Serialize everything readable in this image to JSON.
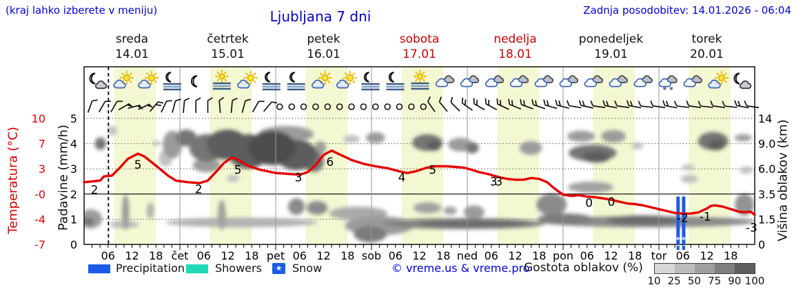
{
  "header": {
    "hint": "(kraj lahko izberete v meniju)",
    "title": "Ljubljana 7 dni",
    "updated": "Zadnja posodobitev: 14.01.2026 - 06:04"
  },
  "legend": {
    "precipitation": "Precipitation",
    "showers": "Showers",
    "snow": "Snow",
    "snow_star": "★",
    "credit": "© vreme.us & vreme.pro",
    "cloud_density": "Gostota oblakov (%)",
    "density_ticks": [
      "10",
      "25",
      "50",
      "75",
      "90",
      "100"
    ],
    "density_colors": [
      "#d6d6d6",
      "#bcbcbc",
      "#9e9e9e",
      "#7f7f7f",
      "#5e5e5e"
    ]
  },
  "colors": {
    "link_blue": "#0000dd",
    "day_red": "#cc0000",
    "day_black": "#111111",
    "curve_red": "#e60000",
    "precip_blue": "#1a5ce6",
    "showers_teal": "#1fd9b5",
    "day_band": "#f4f8d2",
    "grid_gray": "#999999",
    "frame": "#000000"
  },
  "chart_data": {
    "type": "meteogram",
    "title": "Ljubljana 7 dni",
    "days": [
      {
        "name": "sreda",
        "date": "14.01",
        "highlight": false
      },
      {
        "name": "četrtek",
        "date": "15.01",
        "highlight": false
      },
      {
        "name": "petek",
        "date": "16.01",
        "highlight": false
      },
      {
        "name": "sobota",
        "date": "17.01",
        "highlight": true
      },
      {
        "name": "nedelja",
        "date": "18.01",
        "highlight": true
      },
      {
        "name": "ponedeljek",
        "date": "19.01",
        "highlight": false
      },
      {
        "name": "torek",
        "date": "20.01",
        "highlight": false
      }
    ],
    "day_abbrevs": [
      "čet",
      "pet",
      "sob",
      "ned",
      "pon",
      "tor"
    ],
    "hour_ticks": [
      "06",
      "12",
      "18"
    ],
    "axes": {
      "temperature": {
        "label": "Temperatura (°C)",
        "ticks": [
          "10",
          "7",
          "3",
          "-0",
          "-4",
          "-7"
        ],
        "values": [
          10,
          7,
          3,
          0,
          -4,
          -7
        ]
      },
      "precip": {
        "label": "Padavine (mm/h)",
        "ticks": [
          "5",
          "4",
          "3",
          "2",
          "1",
          "0"
        ],
        "values": [
          5,
          4,
          3,
          2,
          1,
          0
        ]
      },
      "cloud": {
        "label": "Višina oblakov (km)",
        "ticks": [
          "14",
          "9.0",
          "6.0",
          "3.5",
          "1.5",
          "0"
        ],
        "values": [
          14,
          9,
          6,
          3.5,
          1.5,
          0
        ]
      }
    },
    "day_band_hours": [
      7.5,
      18
    ],
    "now_hour": 6.1,
    "temperature_curve": [
      [
        0,
        1.4
      ],
      [
        2,
        1.5
      ],
      [
        4,
        1.6
      ],
      [
        5,
        2.1
      ],
      [
        7,
        2.2
      ],
      [
        9,
        3.2
      ],
      [
        11,
        4.6
      ],
      [
        13.5,
        5.4
      ],
      [
        15,
        5.0
      ],
      [
        17,
        4.0
      ],
      [
        19.5,
        2.8
      ],
      [
        21,
        2.2
      ],
      [
        23,
        1.6
      ],
      [
        26,
        1.4
      ],
      [
        29,
        1.3
      ],
      [
        31,
        1.6
      ],
      [
        33,
        2.6
      ],
      [
        35,
        3.9
      ],
      [
        37,
        4.8
      ],
      [
        39,
        4.3
      ],
      [
        41,
        3.5
      ],
      [
        44,
        2.9
      ],
      [
        48,
        2.5
      ],
      [
        51,
        2.4
      ],
      [
        54,
        2.3
      ],
      [
        56,
        2.6
      ],
      [
        58,
        3.6
      ],
      [
        60,
        5.2
      ],
      [
        62,
        5.9
      ],
      [
        64,
        5.3
      ],
      [
        67,
        4.4
      ],
      [
        70,
        3.8
      ],
      [
        73,
        3.4
      ],
      [
        76,
        3.1
      ],
      [
        79,
        2.7
      ],
      [
        81,
        2.5
      ],
      [
        83,
        2.7
      ],
      [
        86,
        3.2
      ],
      [
        88,
        3.4
      ],
      [
        91,
        3.4
      ],
      [
        93,
        3.3
      ],
      [
        95,
        3.2
      ],
      [
        97,
        2.9
      ],
      [
        99,
        2.6
      ],
      [
        101,
        2.4
      ],
      [
        104,
        2.0
      ],
      [
        106,
        1.8
      ],
      [
        108,
        1.7
      ],
      [
        110,
        1.7
      ],
      [
        112,
        1.9
      ],
      [
        114,
        1.8
      ],
      [
        116,
        1.4
      ],
      [
        118,
        0.6
      ],
      [
        120,
        -0.1
      ],
      [
        122,
        -0.3
      ],
      [
        124,
        -0.2
      ],
      [
        126,
        -0.4
      ],
      [
        128,
        -0.5
      ],
      [
        130,
        -0.7
      ],
      [
        132,
        -0.9
      ],
      [
        134,
        -1.2
      ],
      [
        136,
        -1.5
      ],
      [
        138,
        -1.6
      ],
      [
        140,
        -1.8
      ],
      [
        142,
        -2.1
      ],
      [
        144,
        -2.4
      ],
      [
        146,
        -2.7
      ],
      [
        148,
        -3.0
      ],
      [
        150,
        -3.1
      ],
      [
        152,
        -3.1
      ],
      [
        154,
        -2.9
      ],
      [
        156,
        -2.3
      ],
      [
        157,
        -1.9
      ],
      [
        158,
        -1.8
      ],
      [
        160,
        -2.0
      ],
      [
        162,
        -2.4
      ],
      [
        164,
        -2.8
      ],
      [
        165.5,
        -2.9
      ],
      [
        167,
        -2.8
      ],
      [
        168,
        -3.3
      ]
    ],
    "temp_labels": [
      {
        "text": "2",
        "hour": 2.6,
        "anchor": 0.5
      },
      {
        "text": "5",
        "hour": 13.5,
        "anchor": 3.7
      },
      {
        "text": "2",
        "hour": 28.7,
        "anchor": 0.6
      },
      {
        "text": "5",
        "hour": 38.5,
        "anchor": 2.9
      },
      {
        "text": "3",
        "hour": 53.7,
        "anchor": 2.0
      },
      {
        "text": "6",
        "hour": 61.6,
        "anchor": 4.1
      },
      {
        "text": "4",
        "hour": 79.6,
        "anchor": 2.0
      },
      {
        "text": "5",
        "hour": 87.3,
        "anchor": 2.9
      },
      {
        "text": "3",
        "hour": 102.6,
        "anchor": 1.5
      },
      {
        "text": "3",
        "hour": 103.9,
        "anchor": 1.5
      },
      {
        "text": "0",
        "hour": 126.5,
        "anchor": -1.4
      },
      {
        "text": "0",
        "hour": 132.1,
        "anchor": -1.2
      },
      {
        "text": "-2",
        "hour": 149.9,
        "anchor": -3.8
      },
      {
        "text": "-1",
        "hour": 155.6,
        "anchor": -3.6
      },
      {
        "text": "-3",
        "hour": 167.2,
        "anchor": -5.0
      }
    ],
    "precip_bars": [
      {
        "hour": 148.8,
        "mmh": 1.9,
        "snow": true
      },
      {
        "hour": 150.2,
        "mmh": 1.9,
        "snow": true
      }
    ],
    "weather_icons": [
      "moon-cloud",
      "sun-cloud",
      "sun-cloud",
      "moon-fog",
      "moon",
      "sun-fog",
      "sun-cloud",
      "moon-fog",
      "moon-fog",
      "sun-cloud",
      "sun-cloud",
      "moon-fog",
      "moon-fog",
      "sun-fog",
      "cloud",
      "cloud",
      "cloud",
      "cloud",
      "cloud",
      "cloud",
      "cloud",
      "cloud",
      "cloud",
      "cloud-snow",
      "cloud",
      "sun-cloud",
      "moon-cloud"
    ],
    "wind_barbs": [
      [
        1.5,
        "b1",
        20
      ],
      [
        4.5,
        "b1",
        30
      ],
      [
        7.5,
        "b1",
        30
      ],
      [
        10,
        "f",
        60
      ],
      [
        12.5,
        "f",
        75
      ],
      [
        15,
        "f",
        65
      ],
      [
        17.5,
        "b2",
        40
      ],
      [
        20,
        "b1",
        25
      ],
      [
        22.5,
        "b1",
        15
      ],
      [
        25,
        "b1",
        5
      ],
      [
        28,
        "b1",
        0
      ],
      [
        31,
        "b1",
        0
      ],
      [
        34,
        "b1",
        -5
      ],
      [
        37,
        "b1",
        5
      ],
      [
        40,
        "b1",
        15
      ],
      [
        43,
        "b1",
        30
      ],
      [
        46,
        "b1",
        40
      ],
      [
        49,
        "c",
        0
      ],
      [
        52,
        "c",
        0
      ],
      [
        55,
        "c",
        0
      ],
      [
        58,
        "c",
        0
      ],
      [
        61,
        "c",
        0
      ],
      [
        64,
        "c",
        0
      ],
      [
        67,
        "c",
        0
      ],
      [
        70,
        "c",
        0
      ],
      [
        73,
        "c",
        0
      ],
      [
        76,
        "c",
        0
      ],
      [
        79,
        "c",
        0
      ],
      [
        82,
        "c",
        0
      ],
      [
        85,
        "c",
        0
      ],
      [
        87,
        "b1",
        -35
      ],
      [
        90,
        "b1",
        -40
      ],
      [
        93,
        "b1",
        -45
      ],
      [
        96,
        "b2",
        -55
      ],
      [
        99,
        "b2",
        -60
      ],
      [
        102,
        "b2",
        -62
      ],
      [
        105,
        "b2",
        -65
      ],
      [
        108,
        "b2",
        -68
      ],
      [
        111,
        "b2",
        -70
      ],
      [
        114,
        "b2",
        -72
      ],
      [
        117,
        "b2",
        -74
      ],
      [
        120,
        "b2",
        -76
      ],
      [
        123,
        "b1",
        -80
      ],
      [
        126,
        "b2",
        -78
      ],
      [
        129,
        "b1",
        -82
      ],
      [
        132,
        "b2",
        -80
      ],
      [
        135,
        "b1",
        -82
      ],
      [
        138,
        "b2",
        -80
      ],
      [
        141,
        "b1",
        -84
      ],
      [
        144,
        "b1",
        -82
      ],
      [
        147,
        "b2",
        -80
      ],
      [
        150,
        "b1",
        -84
      ],
      [
        153,
        "b1",
        -82
      ],
      [
        156,
        "b1",
        -84
      ],
      [
        159,
        "b1",
        -82
      ],
      [
        162,
        "b1",
        -84
      ],
      [
        165,
        "b2",
        -80
      ],
      [
        167.5,
        "b1",
        -82
      ]
    ],
    "clouds": [
      [
        4.1,
        4.0,
        1.4,
        0.25,
        75
      ],
      [
        7.1,
        4.51,
        1.2,
        0.19,
        25
      ],
      [
        18.1,
        4.02,
        0.9,
        0.11,
        25
      ],
      [
        23.3,
        4.13,
        0.9,
        0.08,
        25
      ],
      [
        20.4,
        3.42,
        1.7,
        0.33,
        25
      ],
      [
        22.1,
        3.96,
        2.4,
        0.55,
        50
      ],
      [
        25.6,
        4.23,
        2.6,
        0.33,
        75
      ],
      [
        30.7,
        3.83,
        4.3,
        0.55,
        75
      ],
      [
        30.7,
        3.14,
        3.5,
        0.27,
        50
      ],
      [
        35.9,
        3.96,
        5.2,
        0.6,
        90
      ],
      [
        41.1,
        3.69,
        5.2,
        0.68,
        90
      ],
      [
        47.1,
        3.83,
        6.0,
        0.68,
        100
      ],
      [
        50.6,
        4.37,
        6.9,
        0.33,
        50
      ],
      [
        53.2,
        3.55,
        5.2,
        0.6,
        90
      ],
      [
        57.5,
        3.28,
        2.6,
        0.41,
        75
      ],
      [
        59.2,
        3.83,
        1.4,
        0.27,
        50
      ],
      [
        37.3,
        2.62,
        1.6,
        0.14,
        25
      ],
      [
        67,
        4.18,
        2.1,
        0.16,
        25
      ],
      [
        73,
        4.23,
        2.4,
        0.22,
        50
      ],
      [
        86,
        4.04,
        3.8,
        0.33,
        75
      ],
      [
        87.7,
        3.91,
        1.7,
        0.19,
        90
      ],
      [
        94.3,
        3.96,
        3.1,
        0.27,
        50
      ],
      [
        97.2,
        3.83,
        1.7,
        0.22,
        75
      ],
      [
        111.9,
        3.83,
        2.8,
        0.27,
        50
      ],
      [
        124.5,
        4.29,
        3.5,
        0.22,
        50
      ],
      [
        132.6,
        4.29,
        3.1,
        0.25,
        50
      ],
      [
        127.4,
        3.63,
        6.0,
        0.33,
        75
      ],
      [
        128.3,
        3.47,
        3.5,
        0.22,
        90
      ],
      [
        138.6,
        3.91,
        1.4,
        0.14,
        25
      ],
      [
        151.3,
        3.06,
        1.7,
        0.11,
        25
      ],
      [
        151.6,
        2.6,
        2.2,
        0.16,
        25
      ],
      [
        157.6,
        4.1,
        3.8,
        0.36,
        75
      ],
      [
        158.5,
        3.96,
        2.1,
        0.22,
        90
      ],
      [
        165.1,
        4.23,
        2.2,
        0.14,
        50
      ],
      [
        165.9,
        2.95,
        1.7,
        0.14,
        25
      ],
      [
        1.7,
        1.01,
        2.8,
        0.38,
        50
      ],
      [
        1.0,
        0.9,
        1.4,
        0.16,
        75
      ],
      [
        10.4,
        1.28,
        0.9,
        0.71,
        50
      ],
      [
        10,
        0.79,
        3.8,
        0.14,
        30
      ],
      [
        16.6,
        1.34,
        0.9,
        0.33,
        35
      ],
      [
        34.5,
        1.17,
        1.0,
        0.6,
        45
      ],
      [
        39.4,
        0.87,
        19,
        0.19,
        35
      ],
      [
        53.2,
        1.5,
        2.1,
        0.33,
        60
      ],
      [
        58.4,
        1.45,
        2.6,
        0.27,
        60
      ],
      [
        68.7,
        1.23,
        7.3,
        0.27,
        40
      ],
      [
        73.9,
        0.74,
        8.6,
        0.38,
        50
      ],
      [
        71.7,
        0.41,
        4.1,
        0.33,
        70
      ],
      [
        86,
        1.45,
        3.5,
        0.22,
        45
      ],
      [
        91.7,
        1.34,
        1.7,
        0.16,
        45
      ],
      [
        97.7,
        1.28,
        2.6,
        0.27,
        50
      ],
      [
        95,
        0.82,
        20.4,
        0.22,
        65
      ],
      [
        97.7,
        0.82,
        13.8,
        0.14,
        80
      ],
      [
        117.1,
        1.58,
        3.8,
        0.44,
        60
      ],
      [
        120.5,
        1.01,
        6.9,
        0.22,
        70
      ],
      [
        126.9,
        2.27,
        5.7,
        0.22,
        45
      ],
      [
        141.2,
        0.9,
        27.1,
        0.22,
        60
      ],
      [
        140,
        0.96,
        9.2,
        0.19,
        80
      ],
      [
        165.4,
        1.58,
        2.4,
        0.44,
        55
      ]
    ]
  }
}
